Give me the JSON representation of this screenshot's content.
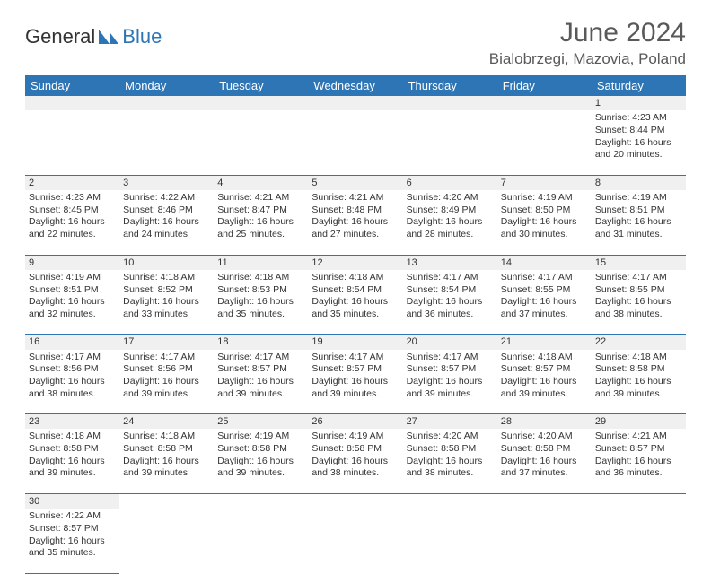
{
  "brand": {
    "part1": "General",
    "part2": "Blue"
  },
  "title": "June 2024",
  "location": "Bialobrzegi, Mazovia, Poland",
  "colors": {
    "header_bg": "#2e75b6",
    "header_text": "#ffffff",
    "daynum_bg": "#f0f0f0",
    "cell_border": "#2e75b6",
    "title_color": "#595959",
    "text_color": "#333333",
    "logo_blue": "#2e75b6"
  },
  "typography": {
    "title_fontsize": 30,
    "location_fontsize": 17,
    "header_fontsize": 13,
    "daynum_fontsize": 11,
    "cell_fontsize": 10.5
  },
  "days_of_week": [
    "Sunday",
    "Monday",
    "Tuesday",
    "Wednesday",
    "Thursday",
    "Friday",
    "Saturday"
  ],
  "weeks": [
    [
      null,
      null,
      null,
      null,
      null,
      null,
      {
        "n": "1",
        "sunrise": "4:23 AM",
        "sunset": "8:44 PM",
        "daylight": "16 hours and 20 minutes."
      }
    ],
    [
      {
        "n": "2",
        "sunrise": "4:23 AM",
        "sunset": "8:45 PM",
        "daylight": "16 hours and 22 minutes."
      },
      {
        "n": "3",
        "sunrise": "4:22 AM",
        "sunset": "8:46 PM",
        "daylight": "16 hours and 24 minutes."
      },
      {
        "n": "4",
        "sunrise": "4:21 AM",
        "sunset": "8:47 PM",
        "daylight": "16 hours and 25 minutes."
      },
      {
        "n": "5",
        "sunrise": "4:21 AM",
        "sunset": "8:48 PM",
        "daylight": "16 hours and 27 minutes."
      },
      {
        "n": "6",
        "sunrise": "4:20 AM",
        "sunset": "8:49 PM",
        "daylight": "16 hours and 28 minutes."
      },
      {
        "n": "7",
        "sunrise": "4:19 AM",
        "sunset": "8:50 PM",
        "daylight": "16 hours and 30 minutes."
      },
      {
        "n": "8",
        "sunrise": "4:19 AM",
        "sunset": "8:51 PM",
        "daylight": "16 hours and 31 minutes."
      }
    ],
    [
      {
        "n": "9",
        "sunrise": "4:19 AM",
        "sunset": "8:51 PM",
        "daylight": "16 hours and 32 minutes."
      },
      {
        "n": "10",
        "sunrise": "4:18 AM",
        "sunset": "8:52 PM",
        "daylight": "16 hours and 33 minutes."
      },
      {
        "n": "11",
        "sunrise": "4:18 AM",
        "sunset": "8:53 PM",
        "daylight": "16 hours and 35 minutes."
      },
      {
        "n": "12",
        "sunrise": "4:18 AM",
        "sunset": "8:54 PM",
        "daylight": "16 hours and 35 minutes."
      },
      {
        "n": "13",
        "sunrise": "4:17 AM",
        "sunset": "8:54 PM",
        "daylight": "16 hours and 36 minutes."
      },
      {
        "n": "14",
        "sunrise": "4:17 AM",
        "sunset": "8:55 PM",
        "daylight": "16 hours and 37 minutes."
      },
      {
        "n": "15",
        "sunrise": "4:17 AM",
        "sunset": "8:55 PM",
        "daylight": "16 hours and 38 minutes."
      }
    ],
    [
      {
        "n": "16",
        "sunrise": "4:17 AM",
        "sunset": "8:56 PM",
        "daylight": "16 hours and 38 minutes."
      },
      {
        "n": "17",
        "sunrise": "4:17 AM",
        "sunset": "8:56 PM",
        "daylight": "16 hours and 39 minutes."
      },
      {
        "n": "18",
        "sunrise": "4:17 AM",
        "sunset": "8:57 PM",
        "daylight": "16 hours and 39 minutes."
      },
      {
        "n": "19",
        "sunrise": "4:17 AM",
        "sunset": "8:57 PM",
        "daylight": "16 hours and 39 minutes."
      },
      {
        "n": "20",
        "sunrise": "4:17 AM",
        "sunset": "8:57 PM",
        "daylight": "16 hours and 39 minutes."
      },
      {
        "n": "21",
        "sunrise": "4:18 AM",
        "sunset": "8:57 PM",
        "daylight": "16 hours and 39 minutes."
      },
      {
        "n": "22",
        "sunrise": "4:18 AM",
        "sunset": "8:58 PM",
        "daylight": "16 hours and 39 minutes."
      }
    ],
    [
      {
        "n": "23",
        "sunrise": "4:18 AM",
        "sunset": "8:58 PM",
        "daylight": "16 hours and 39 minutes."
      },
      {
        "n": "24",
        "sunrise": "4:18 AM",
        "sunset": "8:58 PM",
        "daylight": "16 hours and 39 minutes."
      },
      {
        "n": "25",
        "sunrise": "4:19 AM",
        "sunset": "8:58 PM",
        "daylight": "16 hours and 39 minutes."
      },
      {
        "n": "26",
        "sunrise": "4:19 AM",
        "sunset": "8:58 PM",
        "daylight": "16 hours and 38 minutes."
      },
      {
        "n": "27",
        "sunrise": "4:20 AM",
        "sunset": "8:58 PM",
        "daylight": "16 hours and 38 minutes."
      },
      {
        "n": "28",
        "sunrise": "4:20 AM",
        "sunset": "8:58 PM",
        "daylight": "16 hours and 37 minutes."
      },
      {
        "n": "29",
        "sunrise": "4:21 AM",
        "sunset": "8:57 PM",
        "daylight": "16 hours and 36 minutes."
      }
    ],
    [
      {
        "n": "30",
        "sunrise": "4:22 AM",
        "sunset": "8:57 PM",
        "daylight": "16 hours and 35 minutes."
      },
      null,
      null,
      null,
      null,
      null,
      null
    ]
  ],
  "labels": {
    "sunrise_prefix": "Sunrise: ",
    "sunset_prefix": "Sunset: ",
    "daylight_prefix": "Daylight: "
  }
}
